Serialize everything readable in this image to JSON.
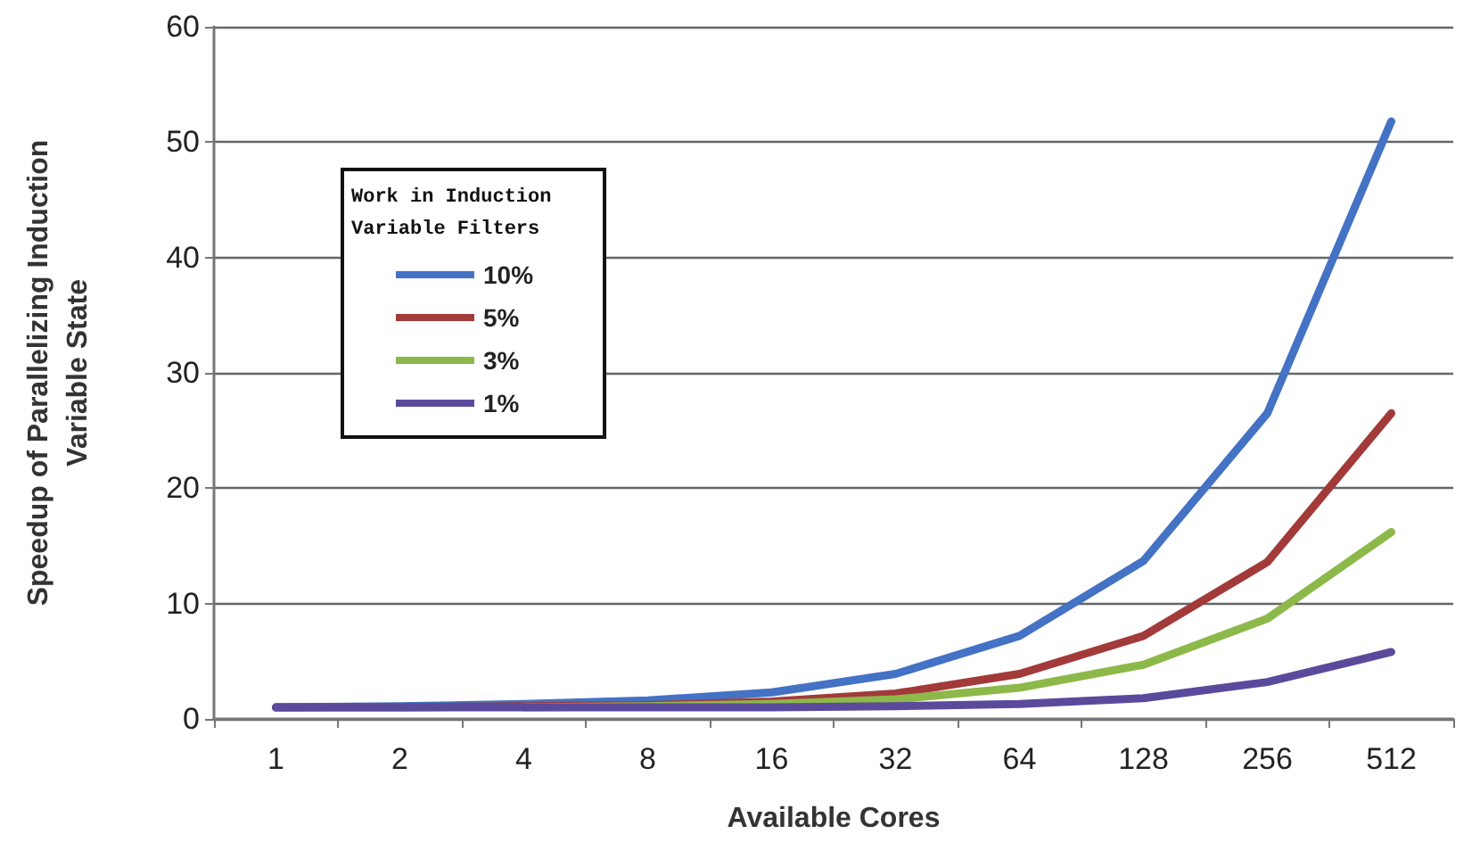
{
  "chart_data": {
    "type": "line",
    "xlabel": "Available Cores",
    "ylabel": "Speedup of Parallelizing Induction\nVariable State",
    "legend_title": "Work in Induction\nVariable Filters",
    "categories": [
      "1",
      "2",
      "4",
      "8",
      "16",
      "32",
      "64",
      "128",
      "256",
      "512"
    ],
    "series": [
      {
        "name": "10%",
        "color": "#4472c4",
        "values": [
          1,
          1.1,
          1.3,
          1.6,
          2.3,
          3.9,
          7.2,
          13.7,
          26.5,
          51.8
        ]
      },
      {
        "name": "5%",
        "color": "#a33a3a",
        "values": [
          1,
          1,
          1.1,
          1.2,
          1.5,
          2.2,
          3.9,
          7.2,
          13.6,
          26.5
        ]
      },
      {
        "name": "3%",
        "color": "#8db84a",
        "values": [
          null,
          null,
          1,
          1.1,
          1.3,
          1.7,
          2.7,
          4.7,
          8.7,
          16.2
        ]
      },
      {
        "name": "1%",
        "color": "#5b4a9c",
        "values": [
          1,
          1,
          1,
          1,
          1,
          1.1,
          1.3,
          1.8,
          3.2,
          5.8
        ]
      }
    ],
    "ylim": [
      0,
      60
    ],
    "yticks": [
      0,
      10,
      20,
      30,
      40,
      50,
      60
    ],
    "grid": "y",
    "legend": "top left",
    "marker": "none",
    "line_style": "solid"
  }
}
